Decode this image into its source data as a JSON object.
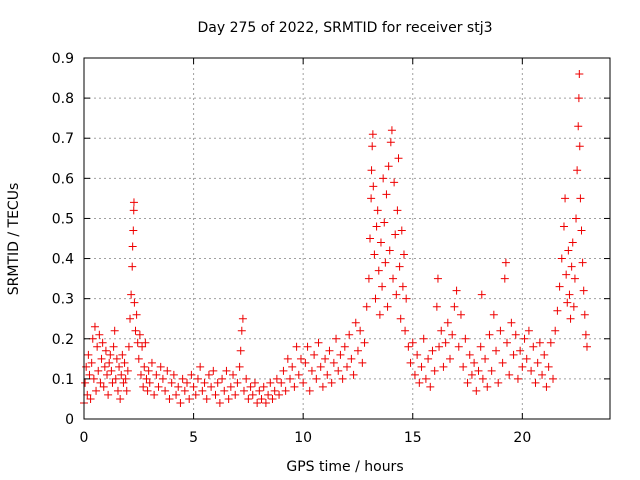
{
  "chart_data": {
    "type": "scatter",
    "title": "Day 275 of 2022, SRMTID for receiver stj3",
    "xlabel": "GPS time / hours",
    "ylabel": "SRMTID / TECUs",
    "xlim": [
      0,
      24
    ],
    "ylim": [
      0,
      0.9
    ],
    "xticks": [
      0,
      5,
      10,
      15,
      20
    ],
    "yticks": [
      0,
      0.1,
      0.2,
      0.3,
      0.4,
      0.5,
      0.6,
      0.7,
      0.8,
      0.9
    ],
    "xtick_labels": [
      "0",
      "5",
      "10",
      "15",
      "20"
    ],
    "ytick_labels": [
      "0",
      "0.1",
      "0.2",
      "0.3",
      "0.4",
      "0.5",
      "0.6",
      "0.7",
      "0.8",
      "0.9"
    ],
    "grid": true,
    "marker": "+",
    "color": "#ee0000",
    "series": [
      {
        "name": "stj3",
        "points": [
          [
            0.0,
            0.04
          ],
          [
            0.05,
            0.09
          ],
          [
            0.1,
            0.13
          ],
          [
            0.15,
            0.06
          ],
          [
            0.2,
            0.16
          ],
          [
            0.25,
            0.11
          ],
          [
            0.3,
            0.05
          ],
          [
            0.35,
            0.14
          ],
          [
            0.4,
            0.2
          ],
          [
            0.45,
            0.1
          ],
          [
            0.5,
            0.23
          ],
          [
            0.55,
            0.07
          ],
          [
            0.6,
            0.18
          ],
          [
            0.65,
            0.12
          ],
          [
            0.7,
            0.21
          ],
          [
            0.75,
            0.09
          ],
          [
            0.8,
            0.15
          ],
          [
            0.85,
            0.19
          ],
          [
            0.9,
            0.08
          ],
          [
            0.95,
            0.13
          ],
          [
            1.0,
            0.17
          ],
          [
            1.05,
            0.11
          ],
          [
            1.1,
            0.06
          ],
          [
            1.15,
            0.14
          ],
          [
            1.2,
            0.16
          ],
          [
            1.25,
            0.12
          ],
          [
            1.3,
            0.09
          ],
          [
            1.35,
            0.18
          ],
          [
            1.4,
            0.22
          ],
          [
            1.45,
            0.1
          ],
          [
            1.5,
            0.15
          ],
          [
            1.55,
            0.07
          ],
          [
            1.6,
            0.13
          ],
          [
            1.65,
            0.05
          ],
          [
            1.7,
            0.11
          ],
          [
            1.75,
            0.16
          ],
          [
            1.8,
            0.09
          ],
          [
            1.85,
            0.14
          ],
          [
            1.9,
            0.1
          ],
          [
            1.95,
            0.07
          ],
          [
            2.0,
            0.12
          ],
          [
            2.05,
            0.18
          ],
          [
            2.1,
            0.25
          ],
          [
            2.15,
            0.31
          ],
          [
            2.2,
            0.38
          ],
          [
            2.22,
            0.43
          ],
          [
            2.25,
            0.47
          ],
          [
            2.27,
            0.52
          ],
          [
            2.28,
            0.54
          ],
          [
            2.3,
            0.29
          ],
          [
            2.35,
            0.22
          ],
          [
            2.4,
            0.26
          ],
          [
            2.45,
            0.19
          ],
          [
            2.5,
            0.15
          ],
          [
            2.55,
            0.21
          ],
          [
            2.6,
            0.11
          ],
          [
            2.65,
            0.18
          ],
          [
            2.7,
            0.08
          ],
          [
            2.75,
            0.13
          ],
          [
            2.8,
            0.19
          ],
          [
            2.85,
            0.1
          ],
          [
            2.9,
            0.07
          ],
          [
            2.95,
            0.12
          ],
          [
            3.0,
            0.09
          ],
          [
            3.1,
            0.14
          ],
          [
            3.2,
            0.06
          ],
          [
            3.3,
            0.11
          ],
          [
            3.4,
            0.08
          ],
          [
            3.5,
            0.13
          ],
          [
            3.6,
            0.1
          ],
          [
            3.7,
            0.07
          ],
          [
            3.8,
            0.12
          ],
          [
            3.9,
            0.05
          ],
          [
            4.0,
            0.09
          ],
          [
            4.1,
            0.11
          ],
          [
            4.2,
            0.06
          ],
          [
            4.3,
            0.08
          ],
          [
            4.4,
            0.04
          ],
          [
            4.5,
            0.1
          ],
          [
            4.6,
            0.07
          ],
          [
            4.7,
            0.09
          ],
          [
            4.8,
            0.05
          ],
          [
            4.9,
            0.11
          ],
          [
            5.0,
            0.08
          ],
          [
            5.1,
            0.06
          ],
          [
            5.2,
            0.1
          ],
          [
            5.3,
            0.13
          ],
          [
            5.4,
            0.07
          ],
          [
            5.5,
            0.09
          ],
          [
            5.6,
            0.05
          ],
          [
            5.7,
            0.11
          ],
          [
            5.8,
            0.08
          ],
          [
            5.9,
            0.12
          ],
          [
            6.0,
            0.06
          ],
          [
            6.1,
            0.09
          ],
          [
            6.2,
            0.04
          ],
          [
            6.3,
            0.1
          ],
          [
            6.4,
            0.07
          ],
          [
            6.5,
            0.12
          ],
          [
            6.6,
            0.05
          ],
          [
            6.7,
            0.08
          ],
          [
            6.8,
            0.11
          ],
          [
            6.9,
            0.06
          ],
          [
            7.0,
            0.09
          ],
          [
            7.1,
            0.13
          ],
          [
            7.15,
            0.17
          ],
          [
            7.2,
            0.22
          ],
          [
            7.25,
            0.25
          ],
          [
            7.3,
            0.07
          ],
          [
            7.4,
            0.1
          ],
          [
            7.5,
            0.05
          ],
          [
            7.6,
            0.08
          ],
          [
            7.7,
            0.06
          ],
          [
            7.8,
            0.09
          ],
          [
            7.9,
            0.04
          ],
          [
            8.0,
            0.07
          ],
          [
            8.1,
            0.05
          ],
          [
            8.2,
            0.08
          ],
          [
            8.3,
            0.04
          ],
          [
            8.4,
            0.06
          ],
          [
            8.5,
            0.09
          ],
          [
            8.6,
            0.05
          ],
          [
            8.7,
            0.07
          ],
          [
            8.8,
            0.1
          ],
          [
            8.9,
            0.06
          ],
          [
            9.0,
            0.09
          ],
          [
            9.1,
            0.12
          ],
          [
            9.2,
            0.07
          ],
          [
            9.3,
            0.15
          ],
          [
            9.4,
            0.1
          ],
          [
            9.5,
            0.13
          ],
          [
            9.6,
            0.08
          ],
          [
            9.7,
            0.18
          ],
          [
            9.8,
            0.11
          ],
          [
            9.9,
            0.15
          ],
          [
            10.0,
            0.09
          ],
          [
            10.1,
            0.14
          ],
          [
            10.2,
            0.18
          ],
          [
            10.3,
            0.07
          ],
          [
            10.4,
            0.12
          ],
          [
            10.5,
            0.16
          ],
          [
            10.6,
            0.1
          ],
          [
            10.7,
            0.19
          ],
          [
            10.8,
            0.13
          ],
          [
            10.9,
            0.08
          ],
          [
            11.0,
            0.15
          ],
          [
            11.1,
            0.11
          ],
          [
            11.2,
            0.17
          ],
          [
            11.3,
            0.09
          ],
          [
            11.4,
            0.14
          ],
          [
            11.5,
            0.2
          ],
          [
            11.6,
            0.12
          ],
          [
            11.7,
            0.16
          ],
          [
            11.8,
            0.1
          ],
          [
            11.9,
            0.18
          ],
          [
            12.0,
            0.13
          ],
          [
            12.1,
            0.21
          ],
          [
            12.2,
            0.15
          ],
          [
            12.3,
            0.11
          ],
          [
            12.4,
            0.24
          ],
          [
            12.5,
            0.17
          ],
          [
            12.6,
            0.22
          ],
          [
            12.7,
            0.14
          ],
          [
            12.8,
            0.19
          ],
          [
            12.9,
            0.28
          ],
          [
            13.0,
            0.35
          ],
          [
            13.05,
            0.45
          ],
          [
            13.1,
            0.55
          ],
          [
            13.12,
            0.62
          ],
          [
            13.15,
            0.68
          ],
          [
            13.18,
            0.71
          ],
          [
            13.2,
            0.58
          ],
          [
            13.25,
            0.41
          ],
          [
            13.3,
            0.3
          ],
          [
            13.35,
            0.48
          ],
          [
            13.4,
            0.52
          ],
          [
            13.45,
            0.37
          ],
          [
            13.5,
            0.26
          ],
          [
            13.55,
            0.44
          ],
          [
            13.6,
            0.33
          ],
          [
            13.65,
            0.6
          ],
          [
            13.7,
            0.49
          ],
          [
            13.75,
            0.39
          ],
          [
            13.8,
            0.56
          ],
          [
            13.85,
            0.28
          ],
          [
            13.9,
            0.63
          ],
          [
            13.95,
            0.42
          ],
          [
            14.0,
            0.69
          ],
          [
            14.05,
            0.72
          ],
          [
            14.1,
            0.35
          ],
          [
            14.15,
            0.59
          ],
          [
            14.2,
            0.46
          ],
          [
            14.25,
            0.31
          ],
          [
            14.3,
            0.52
          ],
          [
            14.35,
            0.65
          ],
          [
            14.4,
            0.38
          ],
          [
            14.45,
            0.25
          ],
          [
            14.5,
            0.47
          ],
          [
            14.55,
            0.33
          ],
          [
            14.6,
            0.41
          ],
          [
            14.65,
            0.22
          ],
          [
            14.7,
            0.3
          ],
          [
            14.8,
            0.18
          ],
          [
            14.9,
            0.14
          ],
          [
            15.0,
            0.19
          ],
          [
            15.1,
            0.11
          ],
          [
            15.2,
            0.16
          ],
          [
            15.3,
            0.09
          ],
          [
            15.4,
            0.13
          ],
          [
            15.5,
            0.2
          ],
          [
            15.6,
            0.1
          ],
          [
            15.7,
            0.15
          ],
          [
            15.8,
            0.08
          ],
          [
            15.9,
            0.17
          ],
          [
            16.0,
            0.12
          ],
          [
            16.1,
            0.28
          ],
          [
            16.15,
            0.35
          ],
          [
            16.2,
            0.18
          ],
          [
            16.3,
            0.22
          ],
          [
            16.4,
            0.13
          ],
          [
            16.5,
            0.19
          ],
          [
            16.6,
            0.24
          ],
          [
            16.7,
            0.15
          ],
          [
            16.8,
            0.21
          ],
          [
            16.9,
            0.28
          ],
          [
            17.0,
            0.32
          ],
          [
            17.1,
            0.18
          ],
          [
            17.2,
            0.26
          ],
          [
            17.3,
            0.13
          ],
          [
            17.4,
            0.2
          ],
          [
            17.5,
            0.09
          ],
          [
            17.6,
            0.16
          ],
          [
            17.7,
            0.11
          ],
          [
            17.8,
            0.14
          ],
          [
            17.9,
            0.07
          ],
          [
            18.0,
            0.12
          ],
          [
            18.1,
            0.18
          ],
          [
            18.15,
            0.31
          ],
          [
            18.2,
            0.1
          ],
          [
            18.3,
            0.15
          ],
          [
            18.4,
            0.08
          ],
          [
            18.5,
            0.21
          ],
          [
            18.6,
            0.12
          ],
          [
            18.7,
            0.26
          ],
          [
            18.8,
            0.17
          ],
          [
            18.9,
            0.09
          ],
          [
            19.0,
            0.22
          ],
          [
            19.1,
            0.14
          ],
          [
            19.2,
            0.35
          ],
          [
            19.25,
            0.39
          ],
          [
            19.3,
            0.19
          ],
          [
            19.4,
            0.11
          ],
          [
            19.5,
            0.24
          ],
          [
            19.6,
            0.16
          ],
          [
            19.7,
            0.21
          ],
          [
            19.8,
            0.1
          ],
          [
            19.9,
            0.17
          ],
          [
            20.0,
            0.13
          ],
          [
            20.1,
            0.2
          ],
          [
            20.2,
            0.15
          ],
          [
            20.3,
            0.22
          ],
          [
            20.4,
            0.12
          ],
          [
            20.5,
            0.18
          ],
          [
            20.6,
            0.09
          ],
          [
            20.7,
            0.14
          ],
          [
            20.8,
            0.19
          ],
          [
            20.9,
            0.11
          ],
          [
            21.0,
            0.16
          ],
          [
            21.1,
            0.08
          ],
          [
            21.2,
            0.13
          ],
          [
            21.3,
            0.19
          ],
          [
            21.4,
            0.1
          ],
          [
            21.5,
            0.22
          ],
          [
            21.6,
            0.27
          ],
          [
            21.7,
            0.33
          ],
          [
            21.8,
            0.4
          ],
          [
            21.9,
            0.48
          ],
          [
            21.95,
            0.55
          ],
          [
            22.0,
            0.36
          ],
          [
            22.05,
            0.29
          ],
          [
            22.1,
            0.42
          ],
          [
            22.15,
            0.31
          ],
          [
            22.2,
            0.25
          ],
          [
            22.25,
            0.38
          ],
          [
            22.3,
            0.44
          ],
          [
            22.35,
            0.28
          ],
          [
            22.4,
            0.35
          ],
          [
            22.45,
            0.5
          ],
          [
            22.5,
            0.62
          ],
          [
            22.55,
            0.73
          ],
          [
            22.58,
            0.8
          ],
          [
            22.6,
            0.86
          ],
          [
            22.62,
            0.68
          ],
          [
            22.65,
            0.55
          ],
          [
            22.7,
            0.47
          ],
          [
            22.75,
            0.39
          ],
          [
            22.8,
            0.32
          ],
          [
            22.85,
            0.26
          ],
          [
            22.9,
            0.21
          ],
          [
            22.95,
            0.18
          ]
        ]
      }
    ]
  }
}
